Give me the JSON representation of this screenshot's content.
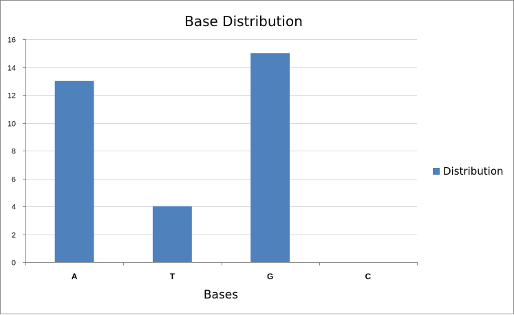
{
  "chart_data": {
    "type": "bar",
    "title": "Base Distribution",
    "xlabel": "Bases",
    "ylabel": "",
    "categories": [
      "A",
      "T",
      "G",
      "C"
    ],
    "series": [
      {
        "name": "Distribution",
        "values": [
          13,
          4,
          15,
          0
        ],
        "color": "#4f81bd"
      }
    ],
    "ylim": [
      0,
      16
    ],
    "yticks": [
      0,
      2,
      4,
      6,
      8,
      10,
      12,
      14,
      16
    ],
    "grid": true,
    "legend_position": "right"
  }
}
